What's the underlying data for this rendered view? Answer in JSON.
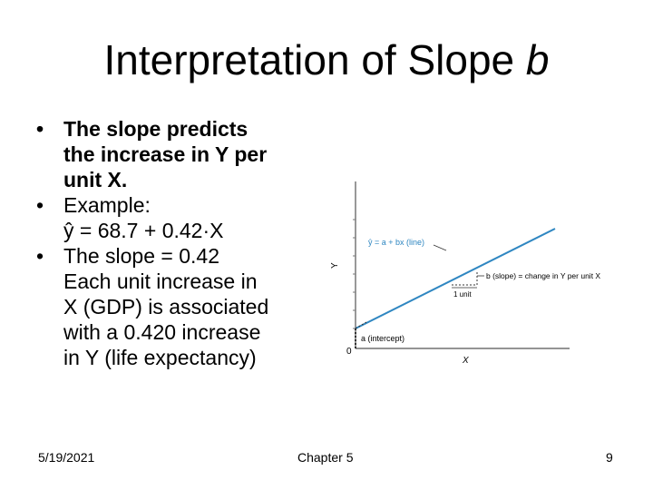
{
  "title": {
    "text": "Interpretation of Slope ",
    "var": "b"
  },
  "bullets": [
    {
      "lines": [
        "The slope predicts",
        "the increase in Y per",
        "unit X."
      ]
    },
    {
      "lines": [
        "Example:",
        "ŷ = 68.7 + 0.42·X"
      ]
    },
    {
      "lines": [
        "The slope = 0.42",
        "Each unit increase in",
        "X (GDP) is associated",
        "with a 0.420 increase",
        "in Y (life expectancy)"
      ]
    }
  ],
  "diagram": {
    "y_axis_label": "Y",
    "x_axis_label": "X",
    "origin_label": "0",
    "line_label": "ŷ = a + bx (line)",
    "slope_label": "b (slope) = change in Y per unit X",
    "unit_label": "1 unit",
    "intercept_label": "a (intercept)",
    "colors": {
      "line": "#2e86c1",
      "axis": "#555555",
      "dotted": "#333333"
    }
  },
  "footer": {
    "date": "5/19/2021",
    "chapter": "Chapter 5",
    "page": "9"
  }
}
